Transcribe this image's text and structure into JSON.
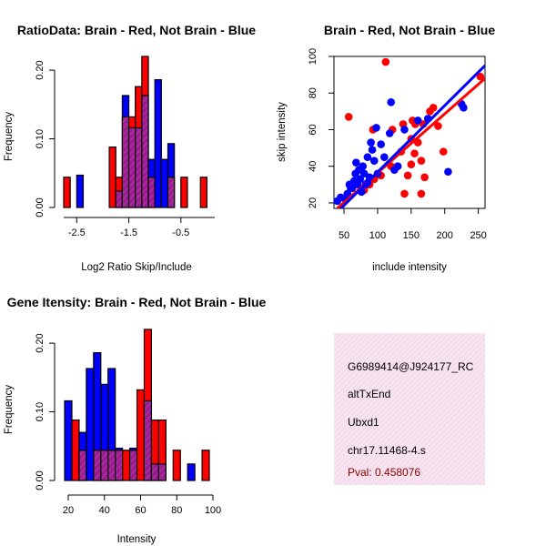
{
  "colors": {
    "red": "#ff0000",
    "blue": "#0000ff",
    "overlap": "#9b1d93",
    "info_bg": "#f4d9ea"
  },
  "chart_data": [
    {
      "id": "ratio-hist",
      "type": "bar",
      "title": "RatioData: Brain - Red, Not Brain - Blue",
      "xlabel": "Log2 Ratio Skip/Include",
      "ylabel": "Frequency",
      "xlim": [
        -2.75,
        0.15
      ],
      "ylim": [
        0,
        0.22
      ],
      "xticks": [
        -2.5,
        -1.5,
        -0.5
      ],
      "xtick_labels": [
        "-2.5",
        "-1.5",
        "-0.5"
      ],
      "yticks": [
        0.0,
        0.1,
        0.2
      ],
      "ytick_labels": [
        "0.00",
        "0.10",
        "0.20"
      ],
      "bin_width": 0.125,
      "series": [
        {
          "name": "Brain",
          "color": "red",
          "bins": [
            {
              "x": -2.75,
              "v": 0.044
            },
            {
              "x": -1.875,
              "v": 0.088
            },
            {
              "x": -1.75,
              "v": 0.044
            },
            {
              "x": -1.625,
              "v": 0.132
            },
            {
              "x": -1.5,
              "v": 0.132
            },
            {
              "x": -1.375,
              "v": 0.176
            },
            {
              "x": -1.25,
              "v": 0.22
            },
            {
              "x": -1.125,
              "v": 0.044
            },
            {
              "x": -0.75,
              "v": 0.044
            },
            {
              "x": -0.5,
              "v": 0.044
            },
            {
              "x": -0.125,
              "v": 0.044
            }
          ]
        },
        {
          "name": "Not Brain",
          "color": "blue",
          "bins": [
            {
              "x": -2.5,
              "v": 0.047
            },
            {
              "x": -1.75,
              "v": 0.024
            },
            {
              "x": -1.625,
              "v": 0.163
            },
            {
              "x": -1.5,
              "v": 0.116
            },
            {
              "x": -1.375,
              "v": 0.116
            },
            {
              "x": -1.25,
              "v": 0.163
            },
            {
              "x": -1.125,
              "v": 0.07
            },
            {
              "x": -1.0,
              "v": 0.186
            },
            {
              "x": -0.875,
              "v": 0.07
            },
            {
              "x": -0.75,
              "v": 0.093
            }
          ]
        }
      ]
    },
    {
      "id": "scatter",
      "type": "scatter",
      "title": "Brain - Red, Not Brain - Blue",
      "xlabel": "include intensity",
      "ylabel": "skip intensity",
      "xlim": [
        35,
        260
      ],
      "ylim": [
        17,
        100
      ],
      "xticks": [
        50,
        100,
        150,
        200,
        250
      ],
      "xtick_labels": [
        "50",
        "100",
        "150",
        "200",
        "250"
      ],
      "yticks": [
        20,
        40,
        60,
        80,
        100
      ],
      "ytick_labels": [
        "20",
        "40",
        "60",
        "80",
        "100"
      ],
      "series": [
        {
          "name": "Brain",
          "color": "red",
          "points": [
            [
              112,
              97
            ],
            [
              57,
              67
            ],
            [
              93,
              60
            ],
            [
              122,
              60
            ],
            [
              138,
              63
            ],
            [
              152,
              65
            ],
            [
              156,
              63
            ],
            [
              168,
              63
            ],
            [
              178,
              70
            ],
            [
              183,
              72
            ],
            [
              150,
              55
            ],
            [
              160,
              53
            ],
            [
              135,
              48
            ],
            [
              155,
              47
            ],
            [
              150,
              41
            ],
            [
              165,
              43
            ],
            [
              145,
              35
            ],
            [
              170,
              34
            ],
            [
              140,
              25
            ],
            [
              165,
              25
            ],
            [
              120,
              40
            ],
            [
              95,
              33
            ],
            [
              88,
              30
            ],
            [
              80,
              27
            ],
            [
              105,
              35
            ],
            [
              190,
              62
            ],
            [
              198,
              48
            ],
            [
              253,
              89
            ]
          ]
        },
        {
          "name": "Not Brain",
          "color": "blue",
          "points": [
            [
              40,
              21
            ],
            [
              45,
              23
            ],
            [
              52,
              22
            ],
            [
              55,
              25
            ],
            [
              58,
              30
            ],
            [
              62,
              28
            ],
            [
              65,
              32
            ],
            [
              67,
              36
            ],
            [
              68,
              42
            ],
            [
              70,
              30
            ],
            [
              72,
              38
            ],
            [
              74,
              33
            ],
            [
              76,
              26
            ],
            [
              78,
              40
            ],
            [
              80,
              36
            ],
            [
              82,
              30
            ],
            [
              85,
              45
            ],
            [
              88,
              34
            ],
            [
              90,
              53
            ],
            [
              92,
              49
            ],
            [
              95,
              43
            ],
            [
              98,
              61
            ],
            [
              105,
              52
            ],
            [
              110,
              45
            ],
            [
              118,
              58
            ],
            [
              120,
              75
            ],
            [
              125,
              38
            ],
            [
              130,
              40
            ],
            [
              140,
              60
            ],
            [
              160,
              65
            ],
            [
              175,
              66
            ],
            [
              205,
              37
            ],
            [
              225,
              74
            ],
            [
              228,
              72
            ],
            [
              60,
              28
            ],
            [
              85,
              31
            ],
            [
              100,
              36
            ]
          ]
        }
      ],
      "fits": [
        {
          "name": "Brain fit",
          "color": "red",
          "x": [
            40,
            260
          ],
          "y": [
            17,
            88
          ]
        },
        {
          "name": "Not Brain fit",
          "color": "blue",
          "x": [
            40,
            260
          ],
          "y": [
            15,
            95
          ]
        }
      ]
    },
    {
      "id": "intensity-hist",
      "type": "bar",
      "title": "Gene Itensity: Brain - Red, Not Brain - Blue",
      "xlabel": "Intensity",
      "ylabel": "Frequency",
      "xlim": [
        20,
        100
      ],
      "ylim": [
        0,
        0.22
      ],
      "xticks": [
        20,
        40,
        60,
        80,
        100
      ],
      "xtick_labels": [
        "20",
        "40",
        "60",
        "80",
        "100"
      ],
      "yticks": [
        0.0,
        0.1,
        0.2
      ],
      "ytick_labels": [
        "0.00",
        "0.10",
        "0.20"
      ],
      "bin_width": 4,
      "series": [
        {
          "name": "Brain",
          "color": "red",
          "bins": [
            {
              "x": 22,
              "v": 0.088
            },
            {
              "x": 26,
              "v": 0.044
            },
            {
              "x": 34,
              "v": 0.044
            },
            {
              "x": 38,
              "v": 0.044
            },
            {
              "x": 42,
              "v": 0.044
            },
            {
              "x": 46,
              "v": 0.044
            },
            {
              "x": 50,
              "v": 0.044
            },
            {
              "x": 54,
              "v": 0.044
            },
            {
              "x": 58,
              "v": 0.132
            },
            {
              "x": 62,
              "v": 0.22
            },
            {
              "x": 66,
              "v": 0.088
            },
            {
              "x": 70,
              "v": 0.088
            },
            {
              "x": 78,
              "v": 0.044
            },
            {
              "x": 94,
              "v": 0.044
            }
          ]
        },
        {
          "name": "Not Brain",
          "color": "blue",
          "bins": [
            {
              "x": 18,
              "v": 0.116
            },
            {
              "x": 26,
              "v": 0.07
            },
            {
              "x": 30,
              "v": 0.163
            },
            {
              "x": 34,
              "v": 0.186
            },
            {
              "x": 38,
              "v": 0.14
            },
            {
              "x": 42,
              "v": 0.163
            },
            {
              "x": 46,
              "v": 0.047
            },
            {
              "x": 54,
              "v": 0.047
            },
            {
              "x": 62,
              "v": 0.116
            },
            {
              "x": 66,
              "v": 0.024
            },
            {
              "x": 70,
              "v": 0.024
            },
            {
              "x": 86,
              "v": 0.024
            }
          ]
        }
      ]
    }
  ],
  "info_panel": {
    "probe_id": "G6989414@J924177_RC",
    "event_type": "altTxEnd",
    "gene": "Ubxd1",
    "location": "chr17.11468-4.s",
    "pval": "Pval: 0.458076"
  }
}
